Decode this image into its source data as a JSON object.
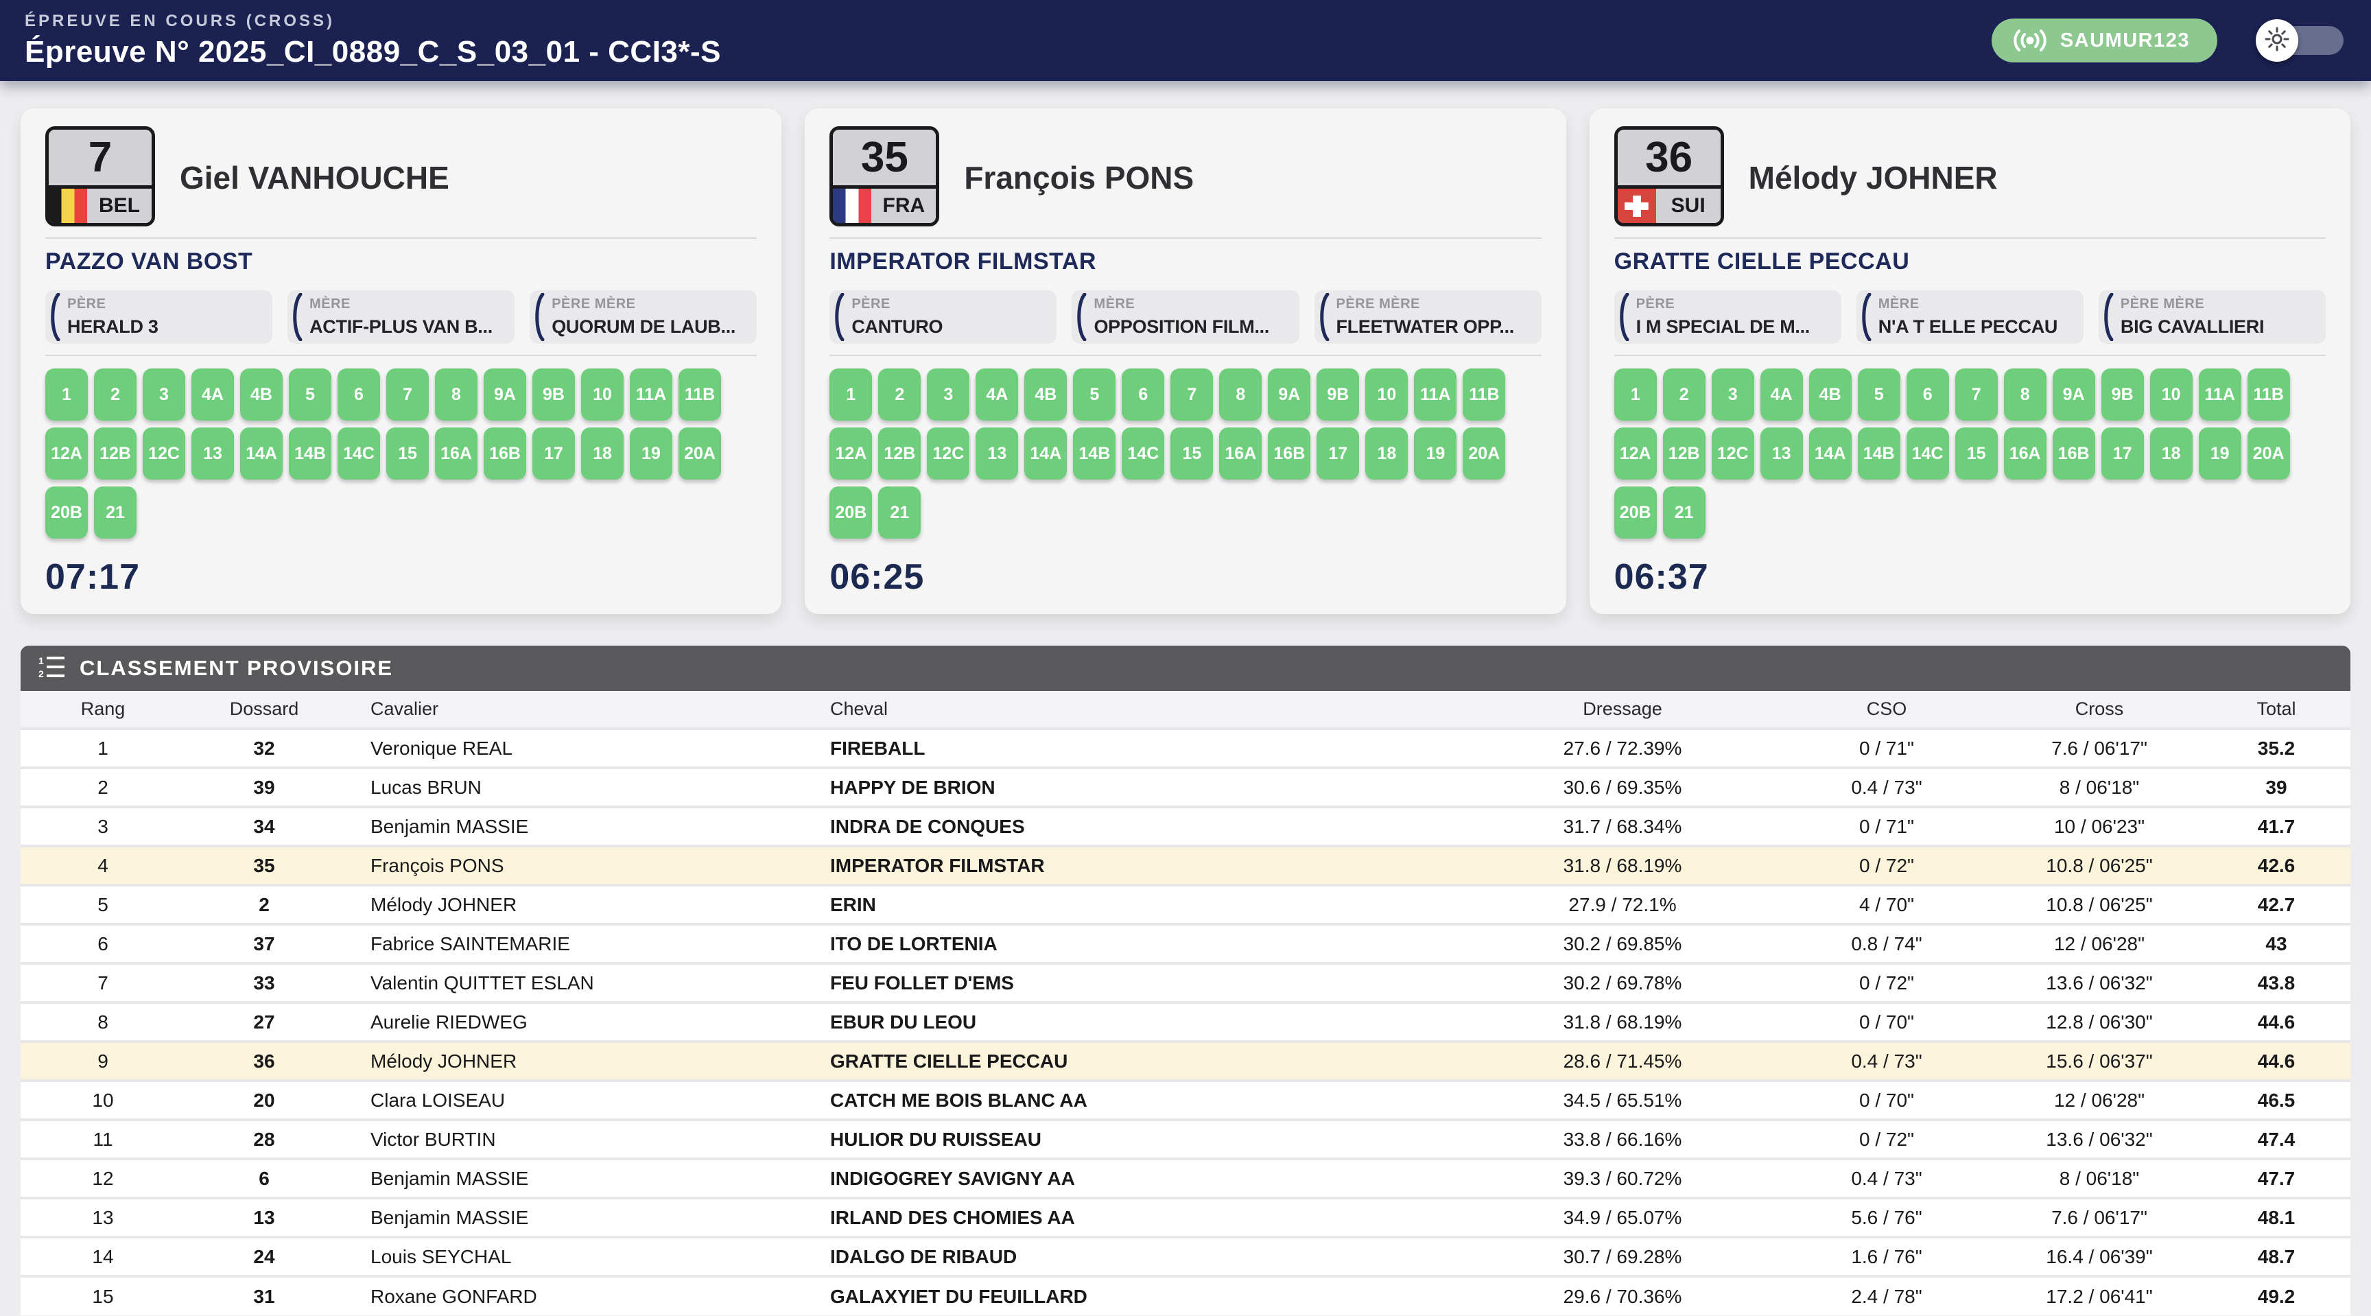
{
  "colors": {
    "navy_header": "#1b2150",
    "fence_green": "#6fce7c",
    "live_badge_green": "#8cc88f",
    "highlight_row": "#fbf3da",
    "board_header_gray": "#59595b",
    "time_navy": "#1c2951"
  },
  "header": {
    "eyebrow": "ÉPREUVE EN COURS (CROSS)",
    "title": "Épreuve N° 2025_CI_0889_C_S_03_01 - CCI3*-S",
    "live_badge": "SAUMUR123"
  },
  "cards": [
    {
      "bib": "7",
      "country": "BEL",
      "rider": "Giel VANHOUCHE",
      "horse": "PAZZO VAN BOST",
      "pedigree": [
        {
          "label": "PÈRE",
          "value": "HERALD 3"
        },
        {
          "label": "MÈRE",
          "value": "ACTIF-PLUS VAN B..."
        },
        {
          "label": "PÈRE MÈRE",
          "value": "QUORUM DE LAUB..."
        }
      ],
      "fences": [
        "1",
        "2",
        "3",
        "4A",
        "4B",
        "5",
        "6",
        "7",
        "8",
        "9A",
        "9B",
        "10",
        "11A",
        "11B",
        "12A",
        "12B",
        "12C",
        "13",
        "14A",
        "14B",
        "14C",
        "15",
        "16A",
        "16B",
        "17",
        "18",
        "19",
        "20A",
        "20B",
        "21"
      ],
      "time": "07:17"
    },
    {
      "bib": "35",
      "country": "FRA",
      "rider": "François PONS",
      "horse": "IMPERATOR FILMSTAR",
      "pedigree": [
        {
          "label": "PÈRE",
          "value": "CANTURO"
        },
        {
          "label": "MÈRE",
          "value": "OPPOSITION FILM..."
        },
        {
          "label": "PÈRE MÈRE",
          "value": "FLEETWATER OPP..."
        }
      ],
      "fences": [
        "1",
        "2",
        "3",
        "4A",
        "4B",
        "5",
        "6",
        "7",
        "8",
        "9A",
        "9B",
        "10",
        "11A",
        "11B",
        "12A",
        "12B",
        "12C",
        "13",
        "14A",
        "14B",
        "14C",
        "15",
        "16A",
        "16B",
        "17",
        "18",
        "19",
        "20A",
        "20B",
        "21"
      ],
      "time": "06:25"
    },
    {
      "bib": "36",
      "country": "SUI",
      "rider": "Mélody JOHNER",
      "horse": "GRATTE CIELLE PECCAU",
      "pedigree": [
        {
          "label": "PÈRE",
          "value": "I M SPECIAL DE M..."
        },
        {
          "label": "MÈRE",
          "value": "N'A T ELLE PECCAU"
        },
        {
          "label": "PÈRE MÈRE",
          "value": "BIG CAVALLIERI"
        }
      ],
      "fences": [
        "1",
        "2",
        "3",
        "4A",
        "4B",
        "5",
        "6",
        "7",
        "8",
        "9A",
        "9B",
        "10",
        "11A",
        "11B",
        "12A",
        "12B",
        "12C",
        "13",
        "14A",
        "14B",
        "14C",
        "15",
        "16A",
        "16B",
        "17",
        "18",
        "19",
        "20A",
        "20B",
        "21"
      ],
      "time": "06:37"
    }
  ],
  "table": {
    "title": "CLASSEMENT PROVISOIRE",
    "columns": [
      "Rang",
      "Dossard",
      "Cavalier",
      "Cheval",
      "Dressage",
      "CSO",
      "Cross",
      "Total"
    ],
    "rows": [
      {
        "rang": "1",
        "dossard": "32",
        "cavalier": "Veronique REAL",
        "cheval": "FIREBALL",
        "dressage": "27.6 / 72.39%",
        "cso": "0 / 71\"",
        "cross": "7.6 / 06'17\"",
        "total": "35.2",
        "highlight": false
      },
      {
        "rang": "2",
        "dossard": "39",
        "cavalier": "Lucas BRUN",
        "cheval": "HAPPY DE BRION",
        "dressage": "30.6 / 69.35%",
        "cso": "0.4 / 73\"",
        "cross": "8 / 06'18\"",
        "total": "39",
        "highlight": false
      },
      {
        "rang": "3",
        "dossard": "34",
        "cavalier": "Benjamin MASSIE",
        "cheval": "INDRA DE CONQUES",
        "dressage": "31.7 / 68.34%",
        "cso": "0 / 71\"",
        "cross": "10 / 06'23\"",
        "total": "41.7",
        "highlight": false
      },
      {
        "rang": "4",
        "dossard": "35",
        "cavalier": "François PONS",
        "cheval": "IMPERATOR FILMSTAR",
        "dressage": "31.8 / 68.19%",
        "cso": "0 / 72\"",
        "cross": "10.8 / 06'25\"",
        "total": "42.6",
        "highlight": true
      },
      {
        "rang": "5",
        "dossard": "2",
        "cavalier": "Mélody JOHNER",
        "cheval": "ERIN",
        "dressage": "27.9 / 72.1%",
        "cso": "4 / 70\"",
        "cross": "10.8 / 06'25\"",
        "total": "42.7",
        "highlight": false
      },
      {
        "rang": "6",
        "dossard": "37",
        "cavalier": "Fabrice SAINTEMARIE",
        "cheval": "ITO DE LORTENIA",
        "dressage": "30.2 / 69.85%",
        "cso": "0.8 / 74\"",
        "cross": "12 / 06'28\"",
        "total": "43",
        "highlight": false
      },
      {
        "rang": "7",
        "dossard": "33",
        "cavalier": "Valentin QUITTET ESLAN",
        "cheval": "FEU FOLLET D'EMS",
        "dressage": "30.2 / 69.78%",
        "cso": "0 / 72\"",
        "cross": "13.6 / 06'32\"",
        "total": "43.8",
        "highlight": false
      },
      {
        "rang": "8",
        "dossard": "27",
        "cavalier": "Aurelie RIEDWEG",
        "cheval": "EBUR DU LEOU",
        "dressage": "31.8 / 68.19%",
        "cso": "0 / 70\"",
        "cross": "12.8 / 06'30\"",
        "total": "44.6",
        "highlight": false
      },
      {
        "rang": "9",
        "dossard": "36",
        "cavalier": "Mélody JOHNER",
        "cheval": "GRATTE CIELLE PECCAU",
        "dressage": "28.6 / 71.45%",
        "cso": "0.4 / 73\"",
        "cross": "15.6 / 06'37\"",
        "total": "44.6",
        "highlight": true
      },
      {
        "rang": "10",
        "dossard": "20",
        "cavalier": "Clara LOISEAU",
        "cheval": "CATCH ME BOIS BLANC AA",
        "dressage": "34.5 / 65.51%",
        "cso": "0 / 70\"",
        "cross": "12 / 06'28\"",
        "total": "46.5",
        "highlight": false
      },
      {
        "rang": "11",
        "dossard": "28",
        "cavalier": "Victor BURTIN",
        "cheval": "HULIOR DU RUISSEAU",
        "dressage": "33.8 / 66.16%",
        "cso": "0 / 72\"",
        "cross": "13.6 / 06'32\"",
        "total": "47.4",
        "highlight": false
      },
      {
        "rang": "12",
        "dossard": "6",
        "cavalier": "Benjamin MASSIE",
        "cheval": "INDIGOGREY SAVIGNY AA",
        "dressage": "39.3 / 60.72%",
        "cso": "0.4 / 73\"",
        "cross": "8 / 06'18\"",
        "total": "47.7",
        "highlight": false
      },
      {
        "rang": "13",
        "dossard": "13",
        "cavalier": "Benjamin MASSIE",
        "cheval": "IRLAND DES CHOMIES AA",
        "dressage": "34.9 / 65.07%",
        "cso": "5.6 / 76\"",
        "cross": "7.6 / 06'17\"",
        "total": "48.1",
        "highlight": false
      },
      {
        "rang": "14",
        "dossard": "24",
        "cavalier": "Louis SEYCHAL",
        "cheval": "IDALGO DE RIBAUD",
        "dressage": "30.7 / 69.28%",
        "cso": "1.6 / 76\"",
        "cross": "16.4 / 06'39\"",
        "total": "48.7",
        "highlight": false
      },
      {
        "rang": "15",
        "dossard": "31",
        "cavalier": "Roxane GONFARD",
        "cheval": "GALAXYIET DU FEUILLARD",
        "dressage": "29.6 / 70.36%",
        "cso": "2.4 / 78\"",
        "cross": "17.2 / 06'41\"",
        "total": "49.2",
        "highlight": false
      }
    ]
  }
}
